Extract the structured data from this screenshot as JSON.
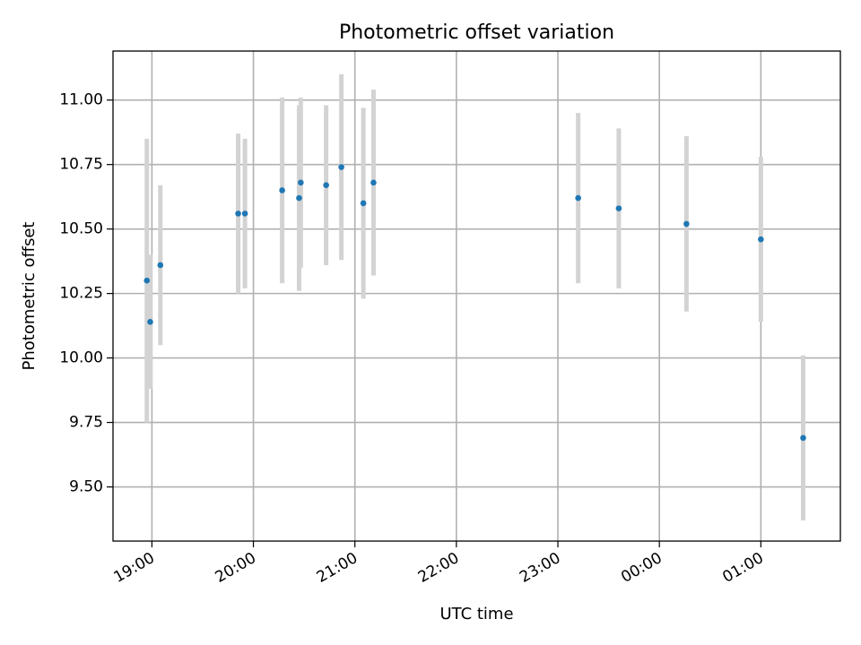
{
  "chart_data": {
    "type": "scatter",
    "title": "Photometric offset variation",
    "xlabel": "UTC time",
    "ylabel": "Photometric offset",
    "x_axis_kind": "time (UTC), spanning midnight",
    "xlim": [
      "18:37",
      "01:47"
    ],
    "ylim": [
      9.29,
      11.19
    ],
    "x_ticks": [
      "19:00",
      "20:00",
      "21:00",
      "22:00",
      "23:00",
      "00:00",
      "01:00"
    ],
    "y_ticks": [
      "9.50",
      "9.75",
      "10.00",
      "10.25",
      "10.50",
      "10.75",
      "11.00"
    ],
    "grid": true,
    "point_color": "#1f77b4",
    "errorbar_color": "#d3d3d3",
    "points": [
      {
        "time": "18:57",
        "y": 10.3,
        "err": 0.55
      },
      {
        "time": "18:59",
        "y": 10.14,
        "err": 0.26
      },
      {
        "time": "19:05",
        "y": 10.36,
        "err": 0.31
      },
      {
        "time": "19:51",
        "y": 10.56,
        "err": 0.31
      },
      {
        "time": "19:55",
        "y": 10.56,
        "err": 0.29
      },
      {
        "time": "20:17",
        "y": 10.65,
        "err": 0.36
      },
      {
        "time": "20:27",
        "y": 10.62,
        "err": 0.36
      },
      {
        "time": "20:28",
        "y": 10.68,
        "err": 0.33
      },
      {
        "time": "20:43",
        "y": 10.67,
        "err": 0.31
      },
      {
        "time": "20:52",
        "y": 10.74,
        "err": 0.36
      },
      {
        "time": "21:05",
        "y": 10.6,
        "err": 0.37
      },
      {
        "time": "21:11",
        "y": 10.68,
        "err": 0.36
      },
      {
        "time": "23:12",
        "y": 10.62,
        "err": 0.33
      },
      {
        "time": "23:36",
        "y": 10.58,
        "err": 0.31
      },
      {
        "time": "00:16",
        "y": 10.52,
        "err": 0.34
      },
      {
        "time": "01:00",
        "y": 10.46,
        "err": 0.32
      },
      {
        "time": "01:25",
        "y": 9.69,
        "err": 0.32
      }
    ]
  }
}
